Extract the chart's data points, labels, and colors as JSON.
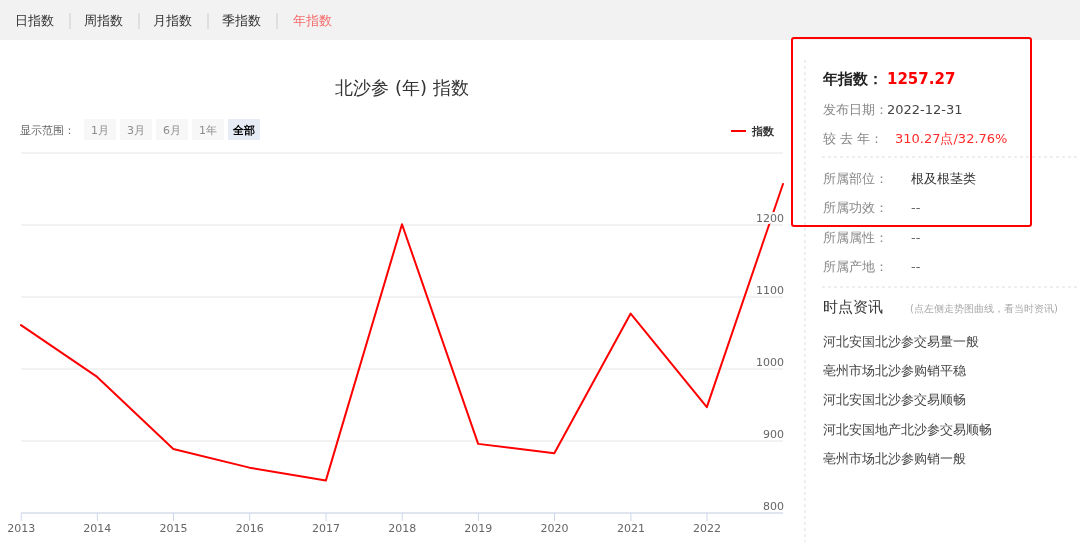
{
  "chart_data": [
    {
      "type": "line",
      "title": "北沙参 (年) 指数",
      "annotations": [
        "日指数",
        "周指数",
        "月指数",
        "季指数",
        "年指数",
        "显示范围：",
        "1月",
        "3月",
        "6月",
        "1年",
        "全部"
      ],
      "x": [
        "2012-12-31",
        "2013-12-31",
        "2014-12-31",
        "2015-12-31",
        "2016-12-31",
        "2017-12-31",
        "2018-12-31",
        "2019-12-31",
        "2020-12-31",
        "2021-12-31",
        "2022-12-31"
      ],
      "series": [
        {
          "name": "指数",
          "color": "#ff0000",
          "values": [
            1061,
            989,
            889,
            863,
            845,
            1201,
            896,
            883,
            1077,
            947,
            1257
          ]
        }
      ],
      "xlim": [
        "2012-12-31",
        "2022-12-31"
      ],
      "xticks": [
        {
          "value": "2013",
          "label": "2013"
        },
        {
          "value": "2014",
          "label": "2014"
        },
        {
          "value": "2015",
          "label": "2015"
        },
        {
          "value": "2016",
          "label": "2016"
        },
        {
          "value": "2017",
          "label": "2017"
        },
        {
          "value": "2018",
          "label": "2018"
        },
        {
          "value": "2019",
          "label": "2019"
        },
        {
          "value": "2020",
          "label": "2020"
        },
        {
          "value": "2021",
          "label": "2021"
        },
        {
          "value": "2022",
          "label": "2022"
        }
      ],
      "ylim": [
        800,
        1300
      ],
      "yticks": [
        800,
        900,
        1000,
        1100,
        1200,
        {
          "value": 1300,
          "label": null
        }
      ],
      "grid": "y",
      "legend": "top right"
    },
    {
      "type": "other",
      "annotations": [
        "年指数：",
        "1257.27",
        "发布日期：",
        "2022-12-31",
        "较 去 年：",
        "310.27点/32.76%",
        "所属部位：",
        "根及根茎类",
        "所属功效：",
        "--",
        "所属属性：",
        "--",
        "所属产地：",
        "--",
        "时点资讯",
        "(点左侧走势图曲线，看当时资讯)",
        "河北安国北沙参交易量一般",
        "亳州市场北沙参购销平稳",
        "河北安国北沙参交易顺畅",
        "河北安国地产北沙参交易顺畅",
        "亳州市场北沙参购销一般"
      ]
    }
  ]
}
